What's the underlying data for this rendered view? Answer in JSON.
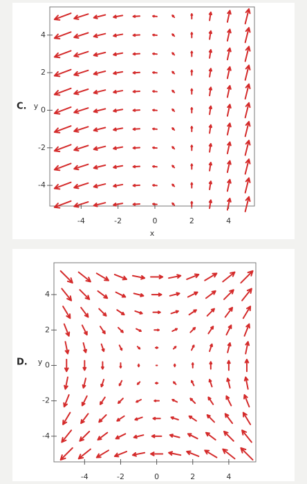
{
  "chart_data": [
    {
      "type": "quiver",
      "label": "C.",
      "ylabel": "y",
      "xlabel": "x",
      "color": "#d42a2a",
      "x": [
        -5,
        -4,
        -3,
        -2,
        -1,
        0,
        1,
        2,
        3,
        4,
        5
      ],
      "y": [
        -5,
        -4,
        -3,
        -2,
        -1,
        0,
        1,
        2,
        3,
        4,
        5
      ],
      "u": [
        [
          -4,
          -3.4,
          -2.8,
          -2.2,
          -1.6,
          -1,
          -0.5,
          0,
          0.3,
          0.6,
          0.9
        ],
        [
          -4,
          -3.4,
          -2.8,
          -2.2,
          -1.6,
          -1,
          -0.5,
          0,
          0.3,
          0.6,
          0.9
        ],
        [
          -4,
          -3.4,
          -2.8,
          -2.2,
          -1.6,
          -1,
          -0.5,
          0,
          0.3,
          0.6,
          0.9
        ],
        [
          -4,
          -3.4,
          -2.8,
          -2.2,
          -1.6,
          -1,
          -0.5,
          0,
          0.3,
          0.6,
          0.9
        ],
        [
          -4,
          -3.4,
          -2.8,
          -2.2,
          -1.6,
          -1,
          -0.5,
          0,
          0.3,
          0.6,
          0.9
        ],
        [
          -4,
          -3.4,
          -2.8,
          -2.2,
          -1.6,
          -1,
          -0.5,
          0,
          0.3,
          0.6,
          0.9
        ],
        [
          -4,
          -3.4,
          -2.8,
          -2.2,
          -1.6,
          -1,
          -0.5,
          0,
          0.3,
          0.6,
          0.9
        ],
        [
          -4,
          -3.4,
          -2.8,
          -2.2,
          -1.6,
          -1,
          -0.5,
          0,
          0.3,
          0.6,
          0.9
        ],
        [
          -4,
          -3.4,
          -2.8,
          -2.2,
          -1.6,
          -1,
          -0.5,
          0,
          0.3,
          0.6,
          0.9
        ],
        [
          -4,
          -3.4,
          -2.8,
          -2.2,
          -1.6,
          -1,
          -0.5,
          0,
          0.3,
          0.6,
          0.9
        ],
        [
          -4,
          -3.4,
          -2.8,
          -2.2,
          -1.6,
          -1,
          -0.5,
          0,
          0.3,
          0.6,
          0.9
        ]
      ],
      "v": [
        [
          -1.5,
          -1.1,
          -0.7,
          -0.4,
          -0.1,
          0.1,
          0.5,
          1.2,
          2,
          2.8,
          3.6
        ],
        [
          -1.5,
          -1.1,
          -0.7,
          -0.4,
          -0.1,
          0.1,
          0.5,
          1.2,
          2,
          2.8,
          3.6
        ],
        [
          -1.5,
          -1.1,
          -0.7,
          -0.4,
          -0.1,
          0.1,
          0.5,
          1.2,
          2,
          2.8,
          3.6
        ],
        [
          -1.5,
          -1.1,
          -0.7,
          -0.4,
          -0.1,
          0.1,
          0.5,
          1.2,
          2,
          2.8,
          3.6
        ],
        [
          -1.5,
          -1.1,
          -0.7,
          -0.4,
          -0.1,
          0.1,
          0.5,
          1.2,
          2,
          2.8,
          3.6
        ],
        [
          -1.5,
          -1.1,
          -0.7,
          -0.4,
          -0.1,
          0.1,
          0.5,
          1.2,
          2,
          2.8,
          3.6
        ],
        [
          -1.5,
          -1.1,
          -0.7,
          -0.4,
          -0.1,
          0.1,
          0.5,
          1.2,
          2,
          2.8,
          3.6
        ],
        [
          -1.5,
          -1.1,
          -0.7,
          -0.4,
          -0.1,
          0.1,
          0.5,
          1.2,
          2,
          2.8,
          3.6
        ],
        [
          -1.5,
          -1.1,
          -0.7,
          -0.4,
          -0.1,
          0.1,
          0.5,
          1.2,
          2,
          2.8,
          3.6
        ],
        [
          -1.5,
          -1.1,
          -0.7,
          -0.4,
          -0.1,
          0.1,
          0.5,
          1.2,
          2,
          2.8,
          3.6
        ],
        [
          -1.5,
          -1.1,
          -0.7,
          -0.4,
          -0.1,
          0.1,
          0.5,
          1.2,
          2,
          2.8,
          3.6
        ]
      ],
      "xlim": [
        -5.7,
        5.4
      ],
      "ylim": [
        -5.1,
        5.5
      ],
      "xticks": [
        -4,
        -2,
        0,
        2,
        4
      ],
      "yticks": [
        -4,
        -2,
        0,
        2,
        4
      ]
    },
    {
      "type": "quiver",
      "label": "D.",
      "ylabel": "y",
      "color": "#d42a2a",
      "x": [
        -5,
        -4,
        -3,
        -2,
        -1,
        0,
        1,
        2,
        3,
        4,
        5
      ],
      "y": [
        -5,
        -4,
        -3,
        -2,
        -1,
        0,
        1,
        2,
        3,
        4,
        5
      ],
      "u": [
        [
          -5,
          -5,
          -5,
          -5,
          -5,
          -5,
          -5,
          -5,
          -5,
          -5,
          -5
        ],
        [
          -4,
          -4,
          -4,
          -4,
          -4,
          -4,
          -4,
          -4,
          -4,
          -4,
          -4
        ],
        [
          -3,
          -3,
          -3,
          -3,
          -3,
          -3,
          -3,
          -3,
          -3,
          -3,
          -3
        ],
        [
          -2,
          -2,
          -2,
          -2,
          -2,
          -2,
          -2,
          -2,
          -2,
          -2,
          -2
        ],
        [
          -1,
          -1,
          -1,
          -1,
          -1,
          -1,
          -1,
          -1,
          -1,
          -1,
          -1
        ],
        [
          0,
          0,
          0,
          0,
          0,
          0,
          0,
          0,
          0,
          0,
          0
        ],
        [
          1,
          1,
          1,
          1,
          1,
          1,
          1,
          1,
          1,
          1,
          1
        ],
        [
          2,
          2,
          2,
          2,
          2,
          2,
          2,
          2,
          2,
          2,
          2
        ],
        [
          3,
          3,
          3,
          3,
          3,
          3,
          3,
          3,
          3,
          3,
          3
        ],
        [
          4,
          4,
          4,
          4,
          4,
          4,
          4,
          4,
          4,
          4,
          4
        ],
        [
          5,
          5,
          5,
          5,
          5,
          5,
          5,
          5,
          5,
          5,
          5
        ]
      ],
      "v": [
        [
          -5,
          -4,
          -3,
          -2,
          -1,
          0,
          1,
          2,
          3,
          4,
          5
        ],
        [
          -5,
          -4,
          -3,
          -2,
          -1,
          0,
          1,
          2,
          3,
          4,
          5
        ],
        [
          -5,
          -4,
          -3,
          -2,
          -1,
          0,
          1,
          2,
          3,
          4,
          5
        ],
        [
          -5,
          -4,
          -3,
          -2,
          -1,
          0,
          1,
          2,
          3,
          4,
          5
        ],
        [
          -5,
          -4,
          -3,
          -2,
          -1,
          0,
          1,
          2,
          3,
          4,
          5
        ],
        [
          -5,
          -4,
          -3,
          -2,
          -1,
          0,
          1,
          2,
          3,
          4,
          5
        ],
        [
          -5,
          -4,
          -3,
          -2,
          -1,
          0,
          1,
          2,
          3,
          4,
          5
        ],
        [
          -5,
          -4,
          -3,
          -2,
          -1,
          0,
          1,
          2,
          3,
          4,
          5
        ],
        [
          -5,
          -4,
          -3,
          -2,
          -1,
          0,
          1,
          2,
          3,
          4,
          5
        ],
        [
          -5,
          -4,
          -3,
          -2,
          -1,
          0,
          1,
          2,
          3,
          4,
          5
        ],
        [
          -5,
          -4,
          -3,
          -2,
          -1,
          0,
          1,
          2,
          3,
          4,
          5
        ]
      ],
      "xlim": [
        -5.7,
        5.5
      ],
      "ylim": [
        -5.45,
        5.8
      ],
      "xticks": [
        -4,
        -2,
        0,
        2,
        4
      ],
      "yticks": [
        -4,
        -2,
        0,
        2,
        4
      ]
    }
  ]
}
